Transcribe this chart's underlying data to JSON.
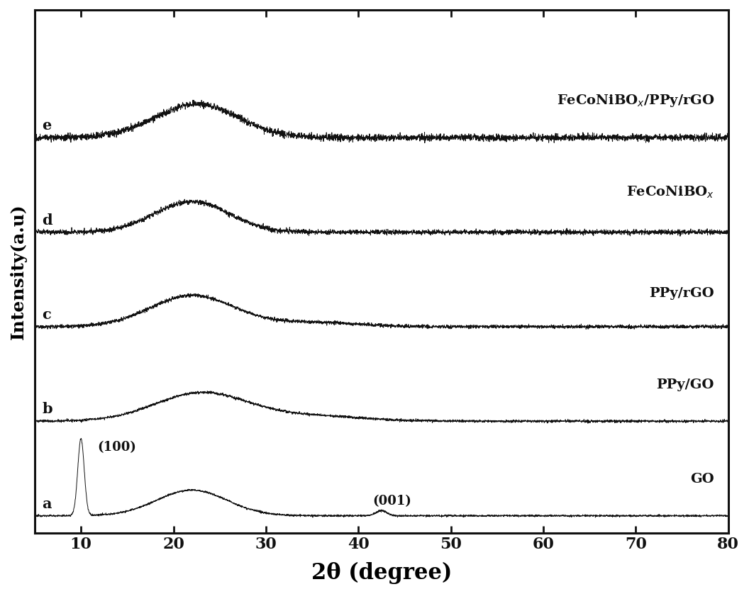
{
  "x_min": 5,
  "x_max": 80,
  "x_ticks": [
    10,
    20,
    30,
    40,
    50,
    60,
    70,
    80
  ],
  "xlabel": "2θ (degree)",
  "ylabel": "Intensity(a.u)",
  "background_color": "#ffffff",
  "line_color": "#111111",
  "labels": {
    "a": "GO",
    "b": "PPy/GO",
    "c": "PPy/rGO",
    "d": "FeCoNiBO$_x$",
    "e": "FeCoNiBO$_x$/PPy/rGO"
  },
  "series_offsets": [
    0.0,
    1.4,
    2.8,
    4.2,
    5.6
  ],
  "figsize": [
    10.56,
    8.38
  ],
  "dpi": 100
}
